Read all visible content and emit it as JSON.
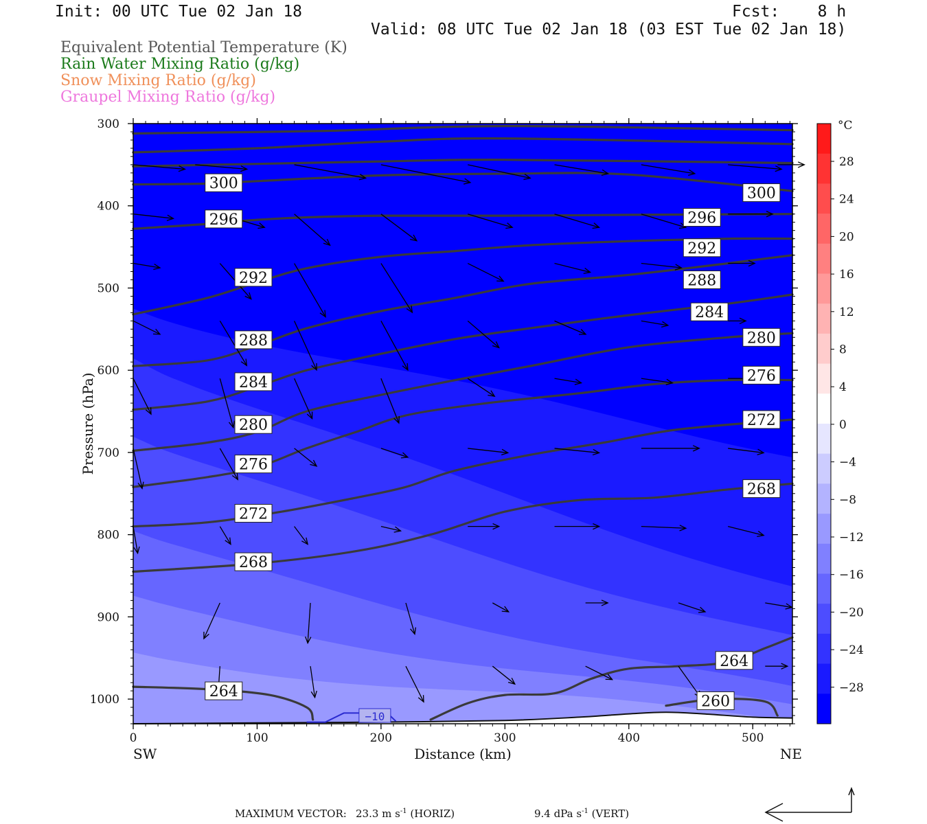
{
  "header": {
    "init": "Init: 00 UTC Tue 02 Jan 18",
    "fcst": "Fcst:    8 h",
    "valid": "Valid: 08 UTC Tue 02 Jan 18 (03 EST Tue 02 Jan 18)"
  },
  "legend": [
    {
      "text": "Equivalent Potential Temperature (K)",
      "color": "#555555"
    },
    {
      "text": "Rain Water Mixing Ratio (g/kg)",
      "color": "#1a7a1a"
    },
    {
      "text": "Snow Mixing Ratio (g/kg)",
      "color": "#f0905a"
    },
    {
      "text": "Graupel Mixing Ratio (g/kg)",
      "color": "#ee77dd"
    }
  ],
  "footer": {
    "label": "MAXIMUM VECTOR:",
    "horiz_value": "23.3 m s",
    "horiz_exp": "-1",
    "horiz_tag": "(HORIZ)",
    "vert_value": "9.4 dPa s",
    "vert_exp": "-1",
    "vert_tag": "(VERT)"
  },
  "chart_data": {
    "type": "heatmap",
    "description_kind": "vertical cross-section",
    "xlabel": "Distance (km)",
    "ylabel": "Pressure (hPa)",
    "x_ticks": [
      0,
      100,
      200,
      300,
      400,
      500
    ],
    "y_ticks": [
      300,
      400,
      500,
      600,
      700,
      800,
      900,
      1000
    ],
    "xlim": [
      0,
      532
    ],
    "ylim": [
      300,
      1030
    ],
    "y_inverted": true,
    "x_end_labels": {
      "left": "SW",
      "right": "NE"
    },
    "colorbar": {
      "unit": "°C",
      "labels": [
        "28",
        "24",
        "20",
        "16",
        "12",
        "8",
        "4",
        "0",
        "−4",
        "−8",
        "−12",
        "−16",
        "−20",
        "−24",
        "−28"
      ],
      "values": [
        28,
        24,
        20,
        16,
        12,
        8,
        4,
        0,
        -4,
        -8,
        -12,
        -16,
        -20,
        -24,
        -28
      ],
      "colors_top_to_bottom": [
        "#ff1a1a",
        "#ff3333",
        "#ff4d4d",
        "#ff6666",
        "#ff8080",
        "#ff9999",
        "#ffb3b3",
        "#ffcccc",
        "#ffe6e6",
        "#ffffff",
        "#e6e6ff",
        "#ccccff",
        "#b3b3ff",
        "#9999ff",
        "#8080ff",
        "#6666ff",
        "#4d4dff",
        "#3333ff",
        "#1a1aff",
        "#0000ff"
      ]
    },
    "temperature_bands": [
      {
        "temp": -28,
        "color": "#0000ff",
        "pressure_sw": 480,
        "pressure_ne": 1030
      },
      {
        "temp": -24,
        "color": "#1a1aff",
        "pressure_sw": 520,
        "pressure_ne": 700
      },
      {
        "temp": -20,
        "color": "#3333ff",
        "pressure_sw": 580,
        "pressure_ne": 860
      },
      {
        "temp": -16,
        "color": "#4d4dff",
        "pressure_sw": 680,
        "pressure_ne": 925
      },
      {
        "temp": -12,
        "color": "#6666ff",
        "pressure_sw": 800,
        "pressure_ne": 990
      },
      {
        "temp": -8,
        "color": "#8080ff",
        "pressure_sw": 880,
        "pressure_ne": 1010
      },
      {
        "temp": -4,
        "color": "#9999ff",
        "pressure_sw": 945,
        "pressure_ne": 1025
      }
    ],
    "theta_e_contours": [
      {
        "value": 260,
        "points": [
          [
            430,
            1008
          ],
          [
            470,
            1000
          ],
          [
            510,
            1003
          ],
          [
            520,
            1020
          ]
        ],
        "label_at": [
          470,
          1002
        ]
      },
      {
        "value": 264,
        "points": [
          [
            0,
            985
          ],
          [
            60,
            988
          ],
          [
            110,
            995
          ],
          [
            140,
            1010
          ],
          [
            145,
            1025
          ]
        ],
        "label_at": [
          73,
          990
        ]
      },
      {
        "value": 264,
        "points": [
          [
            240,
            1025
          ],
          [
            270,
            1005
          ],
          [
            300,
            995
          ],
          [
            340,
            993
          ],
          [
            370,
            975
          ],
          [
            400,
            963
          ],
          [
            440,
            960
          ],
          [
            480,
            955
          ],
          [
            510,
            938
          ],
          [
            532,
            925
          ]
        ],
        "label_at": [
          485,
          953
        ]
      },
      {
        "value": 268,
        "points": [
          [
            0,
            845
          ],
          [
            100,
            835
          ],
          [
            180,
            820
          ],
          [
            240,
            800
          ],
          [
            300,
            772
          ],
          [
            360,
            758
          ],
          [
            420,
            755
          ],
          [
            480,
            745
          ],
          [
            532,
            738
          ]
        ],
        "label_at": [
          97,
          833
        ]
      },
      {
        "value": 272,
        "points": [
          [
            0,
            790
          ],
          [
            60,
            785
          ],
          [
            120,
            772
          ],
          [
            180,
            755
          ],
          [
            220,
            742
          ],
          [
            260,
            722
          ],
          [
            320,
            703
          ],
          [
            380,
            688
          ],
          [
            440,
            672
          ],
          [
            532,
            660
          ]
        ],
        "label_at": [
          97,
          774
        ]
      },
      {
        "value": 276,
        "points": [
          [
            0,
            742
          ],
          [
            60,
            730
          ],
          [
            100,
            718
          ],
          [
            140,
            695
          ],
          [
            180,
            675
          ],
          [
            220,
            655
          ],
          [
            280,
            641
          ],
          [
            360,
            628
          ],
          [
            420,
            617
          ],
          [
            480,
            612
          ],
          [
            532,
            612
          ]
        ],
        "label_at": [
          97,
          714
        ]
      },
      {
        "value": 280,
        "points": [
          [
            0,
            698
          ],
          [
            60,
            688
          ],
          [
            100,
            675
          ],
          [
            140,
            650
          ],
          [
            200,
            630
          ],
          [
            260,
            612
          ],
          [
            320,
            595
          ],
          [
            400,
            572
          ],
          [
            480,
            560
          ],
          [
            532,
            555
          ]
        ],
        "label_at": [
          97,
          666
        ]
      },
      {
        "value": 284,
        "points": [
          [
            0,
            648
          ],
          [
            60,
            638
          ],
          [
            100,
            620
          ],
          [
            140,
            600
          ],
          [
            200,
            580
          ],
          [
            260,
            562
          ],
          [
            320,
            549
          ],
          [
            400,
            533
          ],
          [
            480,
            519
          ],
          [
            532,
            508
          ]
        ],
        "label_at": [
          97,
          614
        ]
      },
      {
        "value": 288,
        "points": [
          [
            0,
            595
          ],
          [
            60,
            588
          ],
          [
            100,
            570
          ],
          [
            140,
            549
          ],
          [
            200,
            528
          ],
          [
            260,
            512
          ],
          [
            320,
            495
          ],
          [
            400,
            484
          ],
          [
            480,
            470
          ],
          [
            532,
            460
          ]
        ],
        "label_at": [
          97,
          563
        ]
      },
      {
        "value": 292,
        "points": [
          [
            0,
            532
          ],
          [
            60,
            512
          ],
          [
            100,
            493
          ],
          [
            140,
            476
          ],
          [
            200,
            462
          ],
          [
            260,
            455
          ],
          [
            320,
            448
          ],
          [
            400,
            443
          ],
          [
            480,
            440
          ],
          [
            532,
            440
          ]
        ],
        "label_at": [
          97,
          487
        ]
      },
      {
        "value": 296,
        "points": [
          [
            0,
            428
          ],
          [
            60,
            422
          ],
          [
            100,
            417
          ],
          [
            140,
            414
          ],
          [
            200,
            412
          ],
          [
            300,
            412
          ],
          [
            400,
            411
          ],
          [
            532,
            410
          ]
        ],
        "label_at": [
          73,
          416
        ]
      },
      {
        "value": 300,
        "points": [
          [
            0,
            374
          ],
          [
            60,
            373
          ],
          [
            100,
            370
          ],
          [
            200,
            363
          ],
          [
            300,
            361
          ],
          [
            400,
            362
          ],
          [
            532,
            382
          ]
        ],
        "label_at": [
          73,
          372
        ]
      },
      {
        "value": 304,
        "points": [
          [
            0,
            352
          ],
          [
            100,
            349
          ],
          [
            200,
            346
          ],
          [
            300,
            344
          ],
          [
            532,
            348
          ]
        ],
        "label_at": null
      },
      {
        "value": 308,
        "points": [
          [
            0,
            335
          ],
          [
            100,
            330
          ],
          [
            200,
            322
          ],
          [
            300,
            318
          ],
          [
            532,
            325
          ]
        ],
        "label_at": null
      },
      {
        "value": 312,
        "points": [
          [
            0,
            312
          ],
          [
            150,
            309
          ],
          [
            300,
            303
          ],
          [
            532,
            308
          ]
        ],
        "label_at": null
      }
    ],
    "extra_contour_labels": [
      {
        "value": 300,
        "at": [
          507,
          384
        ]
      },
      {
        "value": 296,
        "at": [
          459,
          414
        ]
      },
      {
        "value": 292,
        "at": [
          459,
          451
        ]
      },
      {
        "value": 288,
        "at": [
          459,
          490
        ]
      },
      {
        "value": 284,
        "at": [
          465,
          529
        ]
      },
      {
        "value": 280,
        "at": [
          507,
          560
        ]
      },
      {
        "value": 276,
        "at": [
          507,
          606
        ]
      },
      {
        "value": 272,
        "at": [
          507,
          660
        ]
      },
      {
        "value": 268,
        "at": [
          507,
          744
        ]
      }
    ],
    "temperature_contour_label": {
      "value": "−10",
      "at": [
        195,
        1020
      ],
      "color": "#2a2ad0"
    },
    "wind_vectors": [
      {
        "x": 0,
        "p": 350,
        "u": 0.58,
        "w": -0.05
      },
      {
        "x": 50,
        "p": 350,
        "u": 0.58,
        "w": -0.05
      },
      {
        "x": 130,
        "p": 350,
        "u": 0.8,
        "w": -0.15
      },
      {
        "x": 200,
        "p": 350,
        "u": 1.0,
        "w": -0.2
      },
      {
        "x": 270,
        "p": 350,
        "u": 0.7,
        "w": -0.15
      },
      {
        "x": 340,
        "p": 350,
        "u": 0.6,
        "w": -0.1
      },
      {
        "x": 410,
        "p": 350,
        "u": 0.6,
        "w": -0.1
      },
      {
        "x": 480,
        "p": 350,
        "u": 0.6,
        "w": -0.05
      },
      {
        "x": 520,
        "p": 350,
        "u": 0.3,
        "w": 0.0
      },
      {
        "x": 0,
        "p": 410,
        "u": 0.45,
        "w": -0.05
      },
      {
        "x": 70,
        "p": 410,
        "u": 0.5,
        "w": -0.15
      },
      {
        "x": 130,
        "p": 410,
        "u": 0.4,
        "w": -0.35
      },
      {
        "x": 200,
        "p": 410,
        "u": 0.4,
        "w": -0.3
      },
      {
        "x": 270,
        "p": 410,
        "u": 0.5,
        "w": -0.15
      },
      {
        "x": 340,
        "p": 410,
        "u": 0.5,
        "w": -0.15
      },
      {
        "x": 410,
        "p": 410,
        "u": 0.5,
        "w": -0.15
      },
      {
        "x": 480,
        "p": 410,
        "u": 0.5,
        "w": 0.0
      },
      {
        "x": 0,
        "p": 470,
        "u": 0.3,
        "w": -0.05
      },
      {
        "x": 70,
        "p": 470,
        "u": 0.35,
        "w": -0.4
      },
      {
        "x": 130,
        "p": 470,
        "u": 0.35,
        "w": -0.6
      },
      {
        "x": 200,
        "p": 470,
        "u": 0.35,
        "w": -0.55
      },
      {
        "x": 270,
        "p": 470,
        "u": 0.4,
        "w": -0.2
      },
      {
        "x": 340,
        "p": 470,
        "u": 0.4,
        "w": -0.1
      },
      {
        "x": 410,
        "p": 470,
        "u": 0.45,
        "w": -0.05
      },
      {
        "x": 480,
        "p": 470,
        "u": 0.3,
        "w": 0.0
      },
      {
        "x": 0,
        "p": 540,
        "u": 0.3,
        "w": -0.15
      },
      {
        "x": 70,
        "p": 540,
        "u": 0.3,
        "w": -0.5
      },
      {
        "x": 130,
        "p": 540,
        "u": 0.25,
        "w": -0.55
      },
      {
        "x": 200,
        "p": 540,
        "u": 0.3,
        "w": -0.55
      },
      {
        "x": 270,
        "p": 540,
        "u": 0.35,
        "w": -0.3
      },
      {
        "x": 340,
        "p": 540,
        "u": 0.35,
        "w": -0.15
      },
      {
        "x": 410,
        "p": 540,
        "u": 0.3,
        "w": -0.05
      },
      {
        "x": 480,
        "p": 540,
        "u": 0.2,
        "w": 0.0
      },
      {
        "x": 0,
        "p": 610,
        "u": 0.2,
        "w": -0.4
      },
      {
        "x": 70,
        "p": 610,
        "u": 0.15,
        "w": -0.55
      },
      {
        "x": 130,
        "p": 610,
        "u": 0.2,
        "w": -0.45
      },
      {
        "x": 200,
        "p": 610,
        "u": 0.2,
        "w": -0.5
      },
      {
        "x": 270,
        "p": 610,
        "u": 0.3,
        "w": -0.2
      },
      {
        "x": 340,
        "p": 610,
        "u": 0.3,
        "w": -0.05
      },
      {
        "x": 410,
        "p": 610,
        "u": 0.35,
        "w": -0.05
      },
      {
        "x": 480,
        "p": 610,
        "u": 0.35,
        "w": 0.0
      },
      {
        "x": 0,
        "p": 695,
        "u": 0.1,
        "w": -0.45
      },
      {
        "x": 70,
        "p": 695,
        "u": 0.2,
        "w": -0.35
      },
      {
        "x": 130,
        "p": 695,
        "u": 0.25,
        "w": -0.2
      },
      {
        "x": 200,
        "p": 695,
        "u": 0.3,
        "w": -0.1
      },
      {
        "x": 270,
        "p": 695,
        "u": 0.45,
        "w": -0.05
      },
      {
        "x": 340,
        "p": 695,
        "u": 0.5,
        "w": -0.05
      },
      {
        "x": 410,
        "p": 695,
        "u": 0.65,
        "w": 0.0
      },
      {
        "x": 480,
        "p": 695,
        "u": 0.4,
        "w": -0.05
      },
      {
        "x": 0,
        "p": 790,
        "u": 0.05,
        "w": -0.3
      },
      {
        "x": 70,
        "p": 790,
        "u": 0.12,
        "w": -0.2
      },
      {
        "x": 130,
        "p": 790,
        "u": 0.15,
        "w": -0.2
      },
      {
        "x": 200,
        "p": 790,
        "u": 0.22,
        "w": -0.05
      },
      {
        "x": 270,
        "p": 790,
        "u": 0.35,
        "w": 0.0
      },
      {
        "x": 340,
        "p": 790,
        "u": 0.5,
        "w": 0.0
      },
      {
        "x": 410,
        "p": 790,
        "u": 0.5,
        "w": -0.02
      },
      {
        "x": 480,
        "p": 790,
        "u": 0.4,
        "w": -0.1
      },
      {
        "x": 70,
        "p": 883,
        "u": -0.18,
        "w": -0.4
      },
      {
        "x": 143,
        "p": 883,
        "u": -0.03,
        "w": -0.45
      },
      {
        "x": 220,
        "p": 883,
        "u": 0.1,
        "w": -0.35
      },
      {
        "x": 290,
        "p": 883,
        "u": 0.18,
        "w": -0.1
      },
      {
        "x": 365,
        "p": 883,
        "u": 0.25,
        "w": 0.0
      },
      {
        "x": 440,
        "p": 883,
        "u": 0.3,
        "w": -0.1
      },
      {
        "x": 510,
        "p": 883,
        "u": 0.3,
        "w": -0.05
      },
      {
        "x": 70,
        "p": 960,
        "u": -0.02,
        "w": -0.3
      },
      {
        "x": 143,
        "p": 960,
        "u": 0.05,
        "w": -0.35
      },
      {
        "x": 220,
        "p": 960,
        "u": 0.2,
        "w": -0.4
      },
      {
        "x": 290,
        "p": 960,
        "u": 0.25,
        "w": -0.2
      },
      {
        "x": 365,
        "p": 960,
        "u": 0.3,
        "w": -0.15
      },
      {
        "x": 440,
        "p": 960,
        "u": 0.25,
        "w": -0.35
      },
      {
        "x": 510,
        "p": 960,
        "u": 0.25,
        "w": 0.0
      }
    ]
  }
}
